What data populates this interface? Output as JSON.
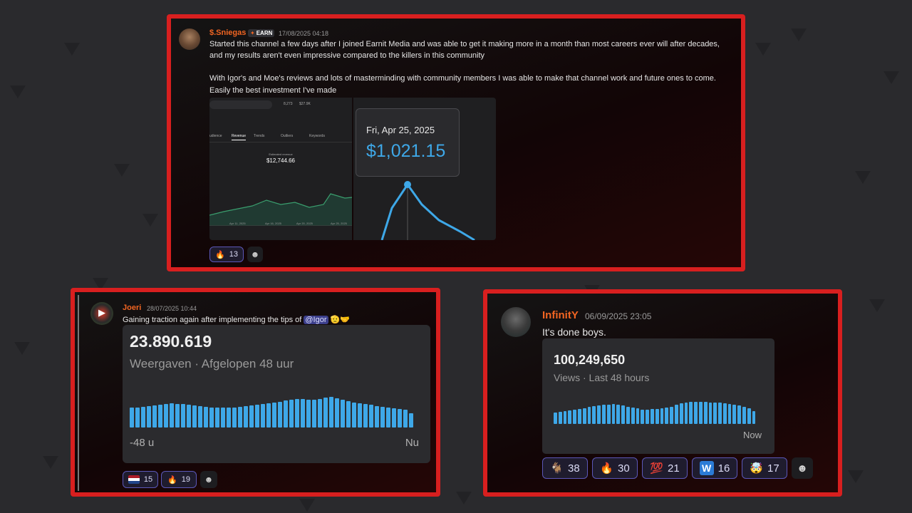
{
  "post1": {
    "username": "$.Sniegas",
    "badge": "EARN",
    "timestamp": "17/08/2025 04:18",
    "line1": "Started this channel a few days after I joined Earnit Media and was able to get it making more in a month than most careers ever will after decades,",
    "line2": "and my results aren't even impressive compared to the killers in this community",
    "line3": "With Igor's and Moe's reviews and lots of masterminding with community members I was able to make that channel work and future ones to come.",
    "line4": "Easily the best investment I've made",
    "analytics": {
      "tabs": [
        "udience",
        "Revenue",
        "Trends",
        "Outliers",
        "Keywords"
      ],
      "stat_label": "Estimated revenue",
      "stat_value": "$12,744.66",
      "dates": [
        "Apr 11, 2025",
        "Apr 16, 2025",
        "Apr 20, 2025",
        "Apr 25, 2025"
      ],
      "top_stats": [
        "8,273",
        "$27.9K"
      ]
    },
    "tooltip_date": "Fri, Apr 25, 2025",
    "tooltip_value": "$1,021.15",
    "reactions": [
      {
        "emoji": "🔥",
        "count": "13"
      }
    ]
  },
  "post2": {
    "username": "Joeri",
    "timestamp": "28/07/2025 10:44",
    "text": "Gaining traction again after implementing the tips of ",
    "mention": "@Igor",
    "emojis": "🫡🤝",
    "stat_value": "23.890.619",
    "stat_label": "Weergaven · Afgelopen 48 uur",
    "x_start": "-48 u",
    "x_end": "Nu",
    "bars": [
      0.55,
      0.56,
      0.58,
      0.6,
      0.62,
      0.64,
      0.66,
      0.67,
      0.66,
      0.65,
      0.63,
      0.62,
      0.6,
      0.58,
      0.57,
      0.56,
      0.55,
      0.56,
      0.57,
      0.58,
      0.6,
      0.62,
      0.64,
      0.66,
      0.68,
      0.7,
      0.72,
      0.75,
      0.78,
      0.8,
      0.79,
      0.77,
      0.78,
      0.8,
      0.83,
      0.85,
      0.82,
      0.78,
      0.74,
      0.7,
      0.68,
      0.66,
      0.63,
      0.6,
      0.58,
      0.56,
      0.54,
      0.52,
      0.5,
      0.4
    ],
    "reactions": [
      {
        "emoji": "flag-nl",
        "count": "15"
      },
      {
        "emoji": "🔥",
        "count": "19"
      }
    ]
  },
  "post3": {
    "username": "InfinitY",
    "timestamp": "06/09/2025 23:05",
    "text": "It's done boys.",
    "stat_value": "100,249,650",
    "stat_label": "Views · Last 48 hours",
    "x_end": "Now",
    "bars": [
      0.45,
      0.47,
      0.5,
      0.52,
      0.55,
      0.58,
      0.62,
      0.66,
      0.7,
      0.72,
      0.74,
      0.76,
      0.78,
      0.76,
      0.72,
      0.68,
      0.65,
      0.6,
      0.56,
      0.55,
      0.57,
      0.59,
      0.61,
      0.64,
      0.68,
      0.74,
      0.8,
      0.84,
      0.85,
      0.86,
      0.87,
      0.86,
      0.84,
      0.83,
      0.82,
      0.8,
      0.78,
      0.75,
      0.72,
      0.66,
      0.6,
      0.5
    ],
    "reactions": [
      {
        "emoji": "🐐",
        "count": "38"
      },
      {
        "emoji": "🔥",
        "count": "30"
      },
      {
        "emoji": "💯",
        "count": "21"
      },
      {
        "emoji": "W",
        "count": "16"
      },
      {
        "emoji": "🤯",
        "count": "17"
      }
    ]
  },
  "colors": {
    "border": "#d81f1f",
    "username": "#f26522",
    "chart_blue": "#3ea8e8"
  }
}
